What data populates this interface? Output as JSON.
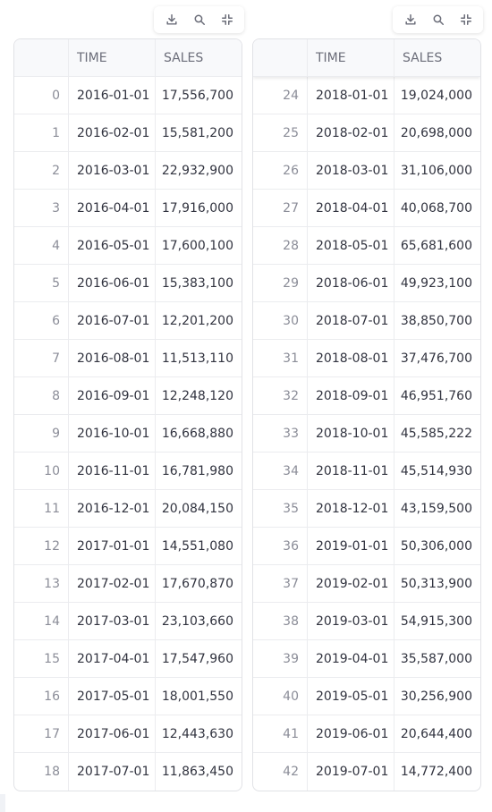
{
  "toolbar": {
    "download_label": "download-icon",
    "search_label": "search-icon",
    "fullscreen_label": "collapse-icon"
  },
  "left_table": {
    "columns": [
      "",
      "TIME",
      "SALES"
    ],
    "rows": [
      {
        "index": "0",
        "time": "2016-01-01",
        "sales": "17,556,700"
      },
      {
        "index": "1",
        "time": "2016-02-01",
        "sales": "15,581,200"
      },
      {
        "index": "2",
        "time": "2016-03-01",
        "sales": "22,932,900"
      },
      {
        "index": "3",
        "time": "2016-04-01",
        "sales": "17,916,000"
      },
      {
        "index": "4",
        "time": "2016-05-01",
        "sales": "17,600,100"
      },
      {
        "index": "5",
        "time": "2016-06-01",
        "sales": "15,383,100"
      },
      {
        "index": "6",
        "time": "2016-07-01",
        "sales": "12,201,200"
      },
      {
        "index": "7",
        "time": "2016-08-01",
        "sales": "11,513,110"
      },
      {
        "index": "8",
        "time": "2016-09-01",
        "sales": "12,248,120"
      },
      {
        "index": "9",
        "time": "2016-10-01",
        "sales": "16,668,880"
      },
      {
        "index": "10",
        "time": "2016-11-01",
        "sales": "16,781,980"
      },
      {
        "index": "11",
        "time": "2016-12-01",
        "sales": "20,084,150"
      },
      {
        "index": "12",
        "time": "2017-01-01",
        "sales": "14,551,080"
      },
      {
        "index": "13",
        "time": "2017-02-01",
        "sales": "17,670,870"
      },
      {
        "index": "14",
        "time": "2017-03-01",
        "sales": "23,103,660"
      },
      {
        "index": "15",
        "time": "2017-04-01",
        "sales": "17,547,960"
      },
      {
        "index": "16",
        "time": "2017-05-01",
        "sales": "18,001,550"
      },
      {
        "index": "17",
        "time": "2017-06-01",
        "sales": "12,443,630"
      },
      {
        "index": "18",
        "time": "2017-07-01",
        "sales": "11,863,450"
      }
    ]
  },
  "right_table": {
    "columns": [
      "",
      "TIME",
      "SALES"
    ],
    "rows": [
      {
        "index": "24",
        "time": "2018-01-01",
        "sales": "19,024,000"
      },
      {
        "index": "25",
        "time": "2018-02-01",
        "sales": "20,698,000"
      },
      {
        "index": "26",
        "time": "2018-03-01",
        "sales": "31,106,000"
      },
      {
        "index": "27",
        "time": "2018-04-01",
        "sales": "40,068,700"
      },
      {
        "index": "28",
        "time": "2018-05-01",
        "sales": "65,681,600"
      },
      {
        "index": "29",
        "time": "2018-06-01",
        "sales": "49,923,100"
      },
      {
        "index": "30",
        "time": "2018-07-01",
        "sales": "38,850,700"
      },
      {
        "index": "31",
        "time": "2018-08-01",
        "sales": "37,476,700"
      },
      {
        "index": "32",
        "time": "2018-09-01",
        "sales": "46,951,760"
      },
      {
        "index": "33",
        "time": "2018-10-01",
        "sales": "45,585,222"
      },
      {
        "index": "34",
        "time": "2018-11-01",
        "sales": "45,514,930"
      },
      {
        "index": "35",
        "time": "2018-12-01",
        "sales": "43,159,500"
      },
      {
        "index": "36",
        "time": "2019-01-01",
        "sales": "50,306,000"
      },
      {
        "index": "37",
        "time": "2019-02-01",
        "sales": "50,313,900"
      },
      {
        "index": "38",
        "time": "2019-03-01",
        "sales": "54,915,300"
      },
      {
        "index": "39",
        "time": "2019-04-01",
        "sales": "35,587,000"
      },
      {
        "index": "40",
        "time": "2019-05-01",
        "sales": "30,256,900"
      },
      {
        "index": "41",
        "time": "2019-06-01",
        "sales": "20,644,400"
      },
      {
        "index": "42",
        "time": "2019-07-01",
        "sales": "14,772,400"
      }
    ]
  }
}
